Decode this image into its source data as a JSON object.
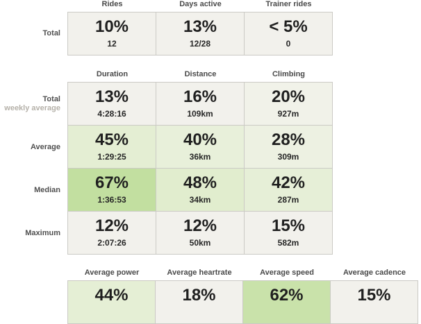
{
  "page": {
    "background": "#ffffff",
    "grid_border_color": "#cbcac5",
    "neutral_cell_color": "#f2f1ec",
    "green_scale_note": "cell background intensity maps to percentile",
    "header_text_color": "#4a4a4a",
    "label_text_color": "#4f4f4f",
    "sublabel_text_color": "#b5b1a9"
  },
  "tables": [
    {
      "name": "totals",
      "columns": [
        "Rides",
        "Days active",
        "Trainer rides"
      ],
      "rows": [
        {
          "label": "Total",
          "cells": [
            {
              "pct": "10%",
              "value": "12",
              "bg": "#f2f1ec"
            },
            {
              "pct": "13%",
              "value": "12/28",
              "bg": "#f2f1ec"
            },
            {
              "pct": "< 5%",
              "value": "0",
              "bg": "#f2f1ec"
            }
          ]
        }
      ]
    },
    {
      "name": "ride-stats",
      "columns": [
        "Duration",
        "Distance",
        "Climbing"
      ],
      "rows": [
        {
          "label": "Total",
          "sublabel": "weekly average",
          "cells": [
            {
              "pct": "13%",
              "value": "4:28:16",
              "bg": "#f2f1ec"
            },
            {
              "pct": "16%",
              "value": "109km",
              "bg": "#f2f1ec"
            },
            {
              "pct": "20%",
              "value": "927m",
              "bg": "#f1f2e9"
            }
          ]
        },
        {
          "label": "Average",
          "cells": [
            {
              "pct": "45%",
              "value": "1:29:25",
              "bg": "#e4eed3"
            },
            {
              "pct": "40%",
              "value": "36km",
              "bg": "#e8f0da"
            },
            {
              "pct": "28%",
              "value": "309m",
              "bg": "#edf1e2"
            }
          ]
        },
        {
          "label": "Median",
          "cells": [
            {
              "pct": "67%",
              "value": "1:36:53",
              "bg": "#c2dfa0"
            },
            {
              "pct": "48%",
              "value": "34km",
              "bg": "#e1edce"
            },
            {
              "pct": "42%",
              "value": "287m",
              "bg": "#e6efd7"
            }
          ]
        },
        {
          "label": "Maximum",
          "cells": [
            {
              "pct": "12%",
              "value": "2:07:26",
              "bg": "#f2f1ec"
            },
            {
              "pct": "12%",
              "value": "50km",
              "bg": "#f2f1ec"
            },
            {
              "pct": "15%",
              "value": "582m",
              "bg": "#f2f1ec"
            }
          ]
        }
      ]
    },
    {
      "name": "averages",
      "columns": [
        "Average power",
        "Average heartrate",
        "Average speed",
        "Average cadence"
      ],
      "rows": [
        {
          "label": "",
          "cells": [
            {
              "pct": "44%",
              "value": "",
              "bg": "#e5efd5"
            },
            {
              "pct": "18%",
              "value": "",
              "bg": "#f2f1ec"
            },
            {
              "pct": "62%",
              "value": "",
              "bg": "#c9e2aa"
            },
            {
              "pct": "15%",
              "value": "",
              "bg": "#f2f1ec"
            }
          ]
        }
      ]
    }
  ]
}
